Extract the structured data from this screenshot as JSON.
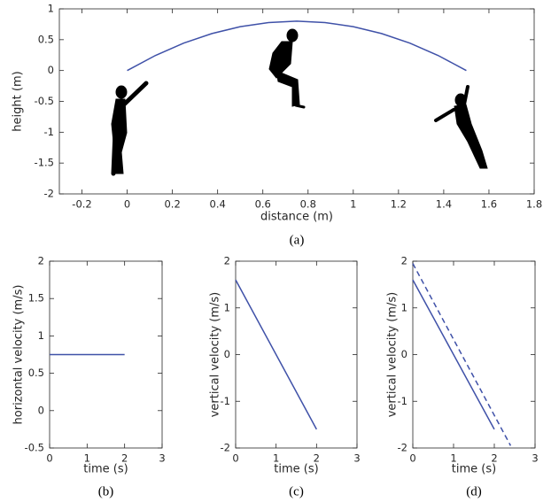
{
  "chart_data": [
    {
      "type": "line",
      "caption": "(a)",
      "xlabel": "distance (m)",
      "ylabel": "height (m)",
      "xlim": [
        -0.3,
        1.8
      ],
      "xticks": [
        -0.2,
        0,
        0.2,
        0.4,
        0.6,
        0.8,
        1,
        1.2,
        1.4,
        1.6,
        1.8
      ],
      "ylim": [
        -2,
        1
      ],
      "yticks": [
        -2,
        -1.5,
        -1,
        -0.5,
        0,
        0.5,
        1
      ],
      "grid": false,
      "series": [
        {
          "color": "#3f51a8",
          "dash": false,
          "x": [
            0,
            0.125,
            0.25,
            0.375,
            0.5,
            0.625,
            0.75,
            0.875,
            1,
            1.125,
            1.25,
            1.375,
            1.5
          ],
          "values": [
            0,
            0.2444,
            0.4444,
            0.6,
            0.7111,
            0.7778,
            0.8,
            0.7778,
            0.7111,
            0.6,
            0.4444,
            0.2444,
            0
          ]
        }
      ]
    },
    {
      "type": "line",
      "caption": "(b)",
      "xlabel": "time (s)",
      "ylabel": "horizontal velocity (m/s)",
      "xlim": [
        0,
        3
      ],
      "xticks": [
        0,
        1,
        2,
        3
      ],
      "ylim": [
        -0.5,
        2
      ],
      "yticks": [
        -0.5,
        0,
        0.5,
        1,
        1.5,
        2
      ],
      "grid": false,
      "series": [
        {
          "color": "#3f51a8",
          "dash": false,
          "x": [
            0,
            2
          ],
          "values": [
            0.75,
            0.75
          ]
        }
      ]
    },
    {
      "type": "line",
      "caption": "(c)",
      "xlabel": "time (s)",
      "ylabel": "vertical velocity (m/s)",
      "xlim": [
        0,
        3
      ],
      "xticks": [
        0,
        1,
        2,
        3
      ],
      "ylim": [
        -2,
        2
      ],
      "yticks": [
        -2,
        -1,
        0,
        1,
        2
      ],
      "grid": false,
      "series": [
        {
          "color": "#3f51a8",
          "dash": false,
          "x": [
            0,
            2
          ],
          "values": [
            1.6,
            -1.6
          ]
        }
      ]
    },
    {
      "type": "line",
      "caption": "(d)",
      "xlabel": "time (s)",
      "ylabel": "vertical velocity (m/s)",
      "xlim": [
        0,
        3
      ],
      "xticks": [
        0,
        1,
        2,
        3
      ],
      "ylim": [
        -2,
        2
      ],
      "yticks": [
        -2,
        -1,
        0,
        1,
        2
      ],
      "grid": false,
      "series": [
        {
          "color": "#3f51a8",
          "dash": false,
          "x": [
            0,
            2
          ],
          "values": [
            1.6,
            -1.6
          ]
        },
        {
          "color": "#3f51a8",
          "dash": true,
          "x": [
            0,
            2.4
          ],
          "values": [
            1.95,
            -1.95
          ]
        }
      ]
    }
  ]
}
